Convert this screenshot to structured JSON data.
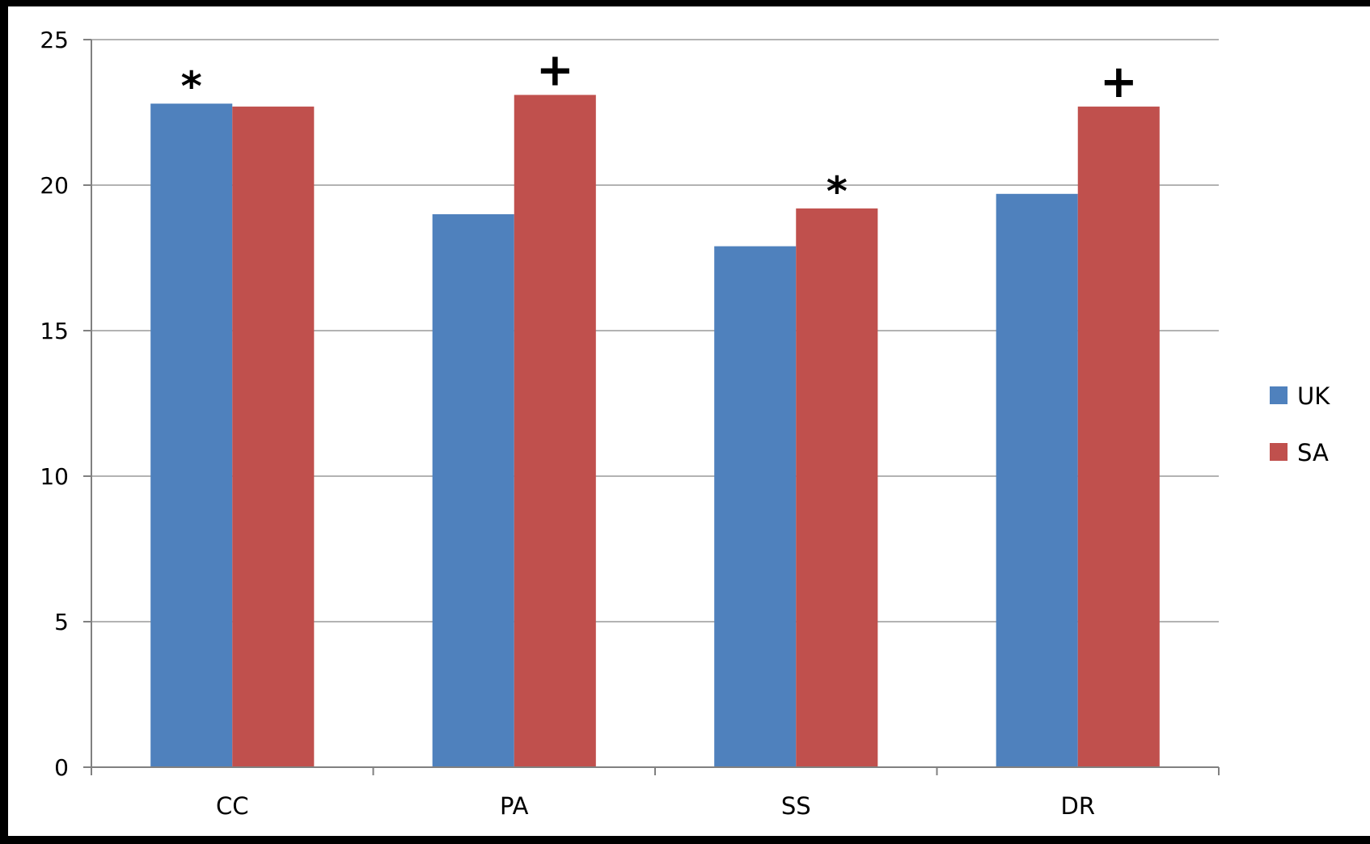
{
  "chart_data": {
    "type": "bar",
    "title": "",
    "xlabel": "",
    "ylabel": "",
    "categories": [
      "CC",
      "PA",
      "SS",
      "DR"
    ],
    "series": [
      {
        "name": "UK",
        "color": "#4F81BD",
        "values": [
          22.8,
          19.0,
          17.9,
          19.7
        ]
      },
      {
        "name": "SA",
        "color": "#C0504D",
        "values": [
          22.7,
          23.1,
          19.2,
          22.7
        ]
      }
    ],
    "annotations": [
      {
        "category": "CC",
        "series": "UK",
        "symbol": "*"
      },
      {
        "category": "PA",
        "series": "SA",
        "symbol": "+"
      },
      {
        "category": "SS",
        "series": "SA",
        "symbol": "*"
      },
      {
        "category": "DR",
        "series": "SA",
        "symbol": "+"
      }
    ],
    "ylim": [
      0,
      25
    ],
    "yticks": [
      "0",
      "5",
      "10",
      "15",
      "20",
      "25"
    ],
    "grid": true,
    "legend_position": "right"
  }
}
